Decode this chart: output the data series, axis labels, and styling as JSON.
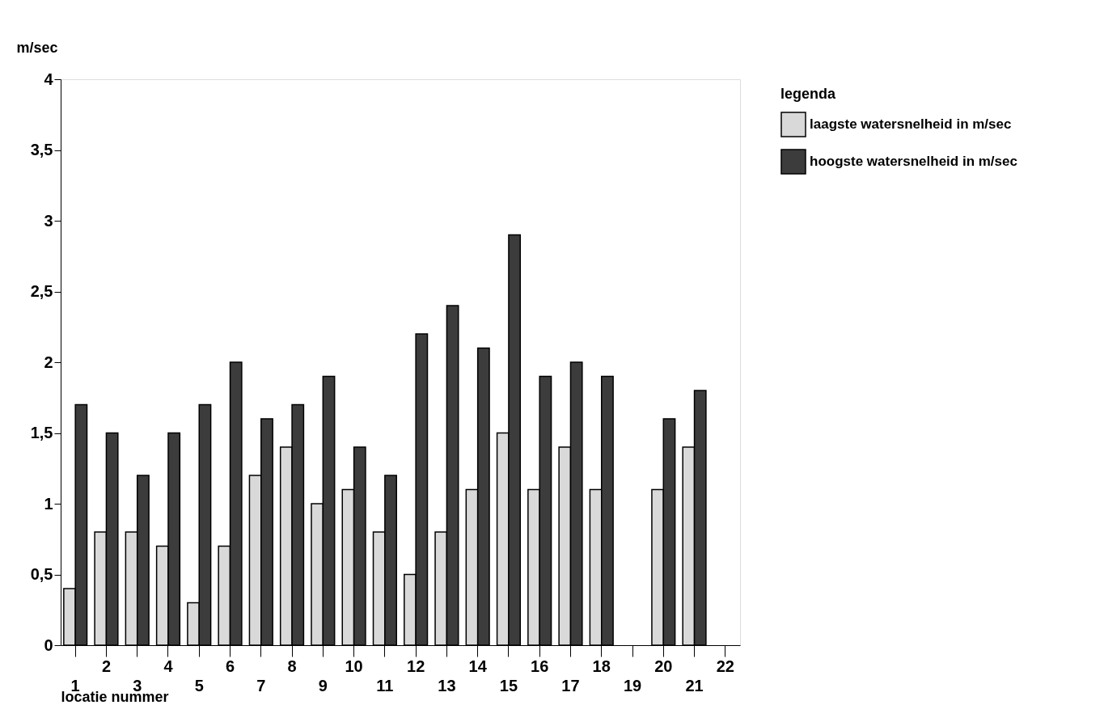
{
  "chart_data": {
    "type": "bar",
    "ylabel": "m/sec",
    "xlabel": "locatie nummer",
    "legend_title": "legenda",
    "categories": [
      "1",
      "2",
      "3",
      "4",
      "5",
      "6",
      "7",
      "8",
      "9",
      "10",
      "11",
      "12",
      "13",
      "14",
      "15",
      "16",
      "17",
      "18",
      "19",
      "20",
      "21",
      "22"
    ],
    "series": [
      {
        "name": "laagste watersnelheid in m/sec",
        "color": "#d9d9d9",
        "values": [
          0.4,
          0.8,
          0.8,
          0.7,
          0.3,
          0.7,
          1.2,
          1.4,
          1.0,
          1.1,
          0.8,
          0.5,
          0.8,
          1.1,
          1.5,
          1.1,
          1.4,
          1.1,
          null,
          1.1,
          1.4,
          null
        ]
      },
      {
        "name": "hoogste watersnelheid in m/sec",
        "color": "#3c3c3c",
        "values": [
          1.7,
          1.5,
          1.2,
          1.5,
          1.7,
          2.0,
          1.6,
          1.7,
          1.9,
          1.4,
          1.2,
          2.2,
          2.4,
          2.1,
          2.9,
          1.9,
          2.0,
          1.9,
          null,
          1.6,
          1.8,
          null
        ]
      }
    ],
    "ylim": [
      0,
      4
    ],
    "yticks": [
      0,
      {
        "value": 0.5,
        "label": "0,5"
      },
      1,
      {
        "value": 1.5,
        "label": "1,5"
      },
      2,
      {
        "value": 2.5,
        "label": "2,5"
      },
      3,
      {
        "value": 3.5,
        "label": "3,5"
      },
      4
    ],
    "grid": false,
    "legend": "top right"
  }
}
